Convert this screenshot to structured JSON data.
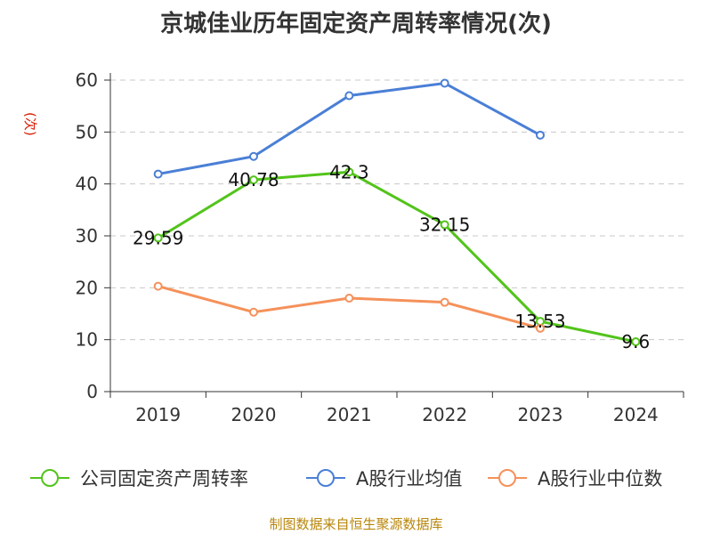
{
  "chart_data": {
    "type": "line",
    "title": "京城佳业历年固定资产周转率情况(次)",
    "ylabel": "(次)",
    "categories": [
      "2019",
      "2020",
      "2021",
      "2022",
      "2023",
      "2024"
    ],
    "ylim": [
      0,
      60
    ],
    "yticks": [
      0,
      10,
      20,
      30,
      40,
      50,
      60
    ],
    "grid": true,
    "legend_position": "bottom",
    "series": [
      {
        "name": "公司固定资产周转率",
        "color": "#52c41a",
        "values": [
          29.59,
          40.78,
          42.3,
          32.15,
          13.53,
          9.6
        ],
        "data_labels": [
          "29.59",
          "40.78",
          "42.3",
          "32.15",
          "13.53",
          "9.6"
        ]
      },
      {
        "name": "A股行业均值",
        "color": "#4a7fd6",
        "values": [
          41.9,
          45.3,
          57.0,
          59.4,
          49.4,
          null
        ]
      },
      {
        "name": "A股行业中位数",
        "color": "#f5915a",
        "values": [
          20.3,
          15.3,
          18.0,
          17.2,
          12.2,
          null
        ]
      }
    ]
  },
  "source": "制图数据来自恒生聚源数据库"
}
